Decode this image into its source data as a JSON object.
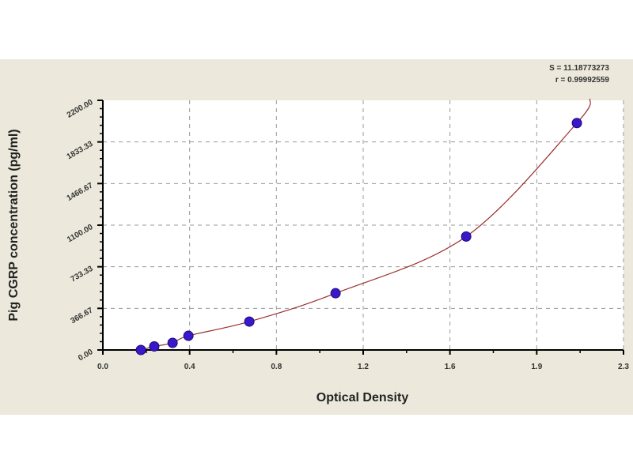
{
  "chart_data": {
    "type": "scatter",
    "xlabel": "Optical Density",
    "ylabel": "Pig CGRP concentration (pg/ml)",
    "xlim": [
      0,
      2.3
    ],
    "ylim": [
      0,
      2200
    ],
    "x_ticks": [
      "0.0",
      "0.4",
      "0.8",
      "1.2",
      "1.6",
      "1.9",
      "2.3"
    ],
    "y_ticks": [
      "0.00",
      "366.67",
      "733.33",
      "1100.00",
      "1466.67",
      "1833.33",
      "2200.00"
    ],
    "grid": true,
    "stats": [
      "S = 11.18773273",
      "r = 0.99992559"
    ],
    "points": [
      {
        "x": 0.168,
        "y": 0
      },
      {
        "x": 0.227,
        "y": 31.25
      },
      {
        "x": 0.308,
        "y": 62.5
      },
      {
        "x": 0.378,
        "y": 125
      },
      {
        "x": 0.647,
        "y": 250
      },
      {
        "x": 1.028,
        "y": 500
      },
      {
        "x": 1.605,
        "y": 1000
      },
      {
        "x": 2.094,
        "y": 2000
      }
    ],
    "fit_curve": true,
    "colors": {
      "points": "#3a18c8",
      "curve": "#9a3030",
      "background": "#ece9dc",
      "plot_area": "#ffffff"
    }
  }
}
